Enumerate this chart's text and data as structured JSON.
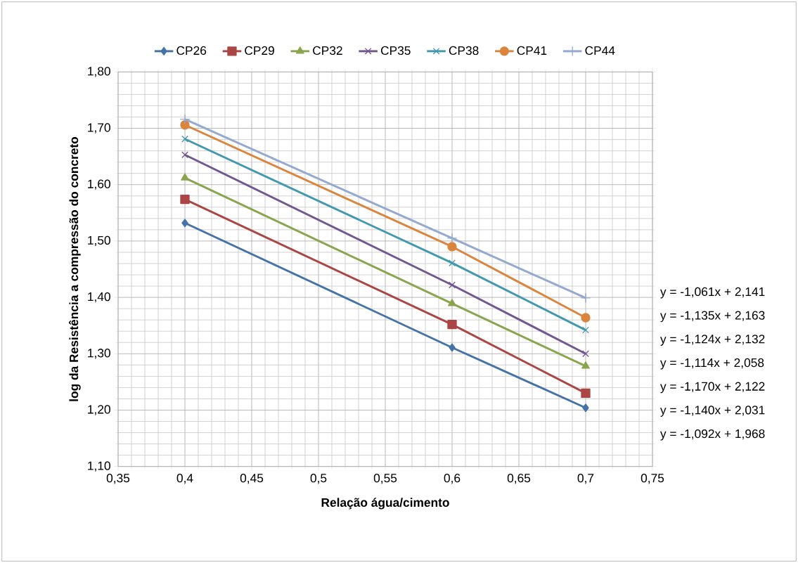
{
  "chart_data": {
    "type": "line",
    "xlabel": "Relação água/cimento",
    "ylabel": "log da Resistência a compressão do concreto",
    "x": [
      0.4,
      0.6,
      0.7
    ],
    "series": [
      {
        "name": "CP26",
        "color": "#4572a7",
        "marker": "diamond",
        "values": [
          1.532,
          1.311,
          1.204
        ]
      },
      {
        "name": "CP29",
        "color": "#aa4643",
        "marker": "square",
        "values": [
          1.574,
          1.352,
          1.23
        ]
      },
      {
        "name": "CP32",
        "color": "#89a54e",
        "marker": "triangle",
        "values": [
          1.612,
          1.389,
          1.278
        ]
      },
      {
        "name": "CP35",
        "color": "#71588f",
        "marker": "cross",
        "values": [
          1.653,
          1.422,
          1.3
        ]
      },
      {
        "name": "CP38",
        "color": "#4198af",
        "marker": "cross",
        "values": [
          1.681,
          1.461,
          1.342
        ]
      },
      {
        "name": "CP41",
        "color": "#db843d",
        "marker": "circle",
        "values": [
          1.706,
          1.49,
          1.364
        ]
      },
      {
        "name": "CP44",
        "color": "#93a9cf",
        "marker": "plus",
        "values": [
          1.716,
          1.505,
          1.399
        ]
      }
    ],
    "xlim": [
      0.35,
      0.75
    ],
    "xticks": [
      {
        "value": 0.35,
        "label": "0,35"
      },
      {
        "value": 0.4,
        "label": "0,4"
      },
      {
        "value": 0.45,
        "label": "0,45"
      },
      {
        "value": 0.5,
        "label": "0,5"
      },
      {
        "value": 0.55,
        "label": "0,55"
      },
      {
        "value": 0.6,
        "label": "0,6"
      },
      {
        "value": 0.65,
        "label": "0,65"
      },
      {
        "value": 0.7,
        "label": "0,7"
      },
      {
        "value": 0.75,
        "label": "0,75"
      }
    ],
    "ylim": [
      1.1,
      1.8
    ],
    "yticks": [
      {
        "value": 1.1,
        "label": "1,10"
      },
      {
        "value": 1.2,
        "label": "1,20"
      },
      {
        "value": 1.3,
        "label": "1,30"
      },
      {
        "value": 1.4,
        "label": "1,40"
      },
      {
        "value": 1.5,
        "label": "1,50"
      },
      {
        "value": 1.6,
        "label": "1,60"
      },
      {
        "value": 1.7,
        "label": "1,70"
      },
      {
        "value": 1.8,
        "label": "1,80"
      }
    ],
    "annotations": [
      "y = -1,061x + 2,141",
      "y = -1,135x + 2,163",
      "y = -1,124x + 2,132",
      "y = -1,114x + 2,058",
      "y = -1,170x + 2,122",
      "y = -1,140x + 2,031",
      "y = -1,092x + 1,968"
    ],
    "grid": true,
    "legend": "top",
    "line_style": "solid"
  }
}
